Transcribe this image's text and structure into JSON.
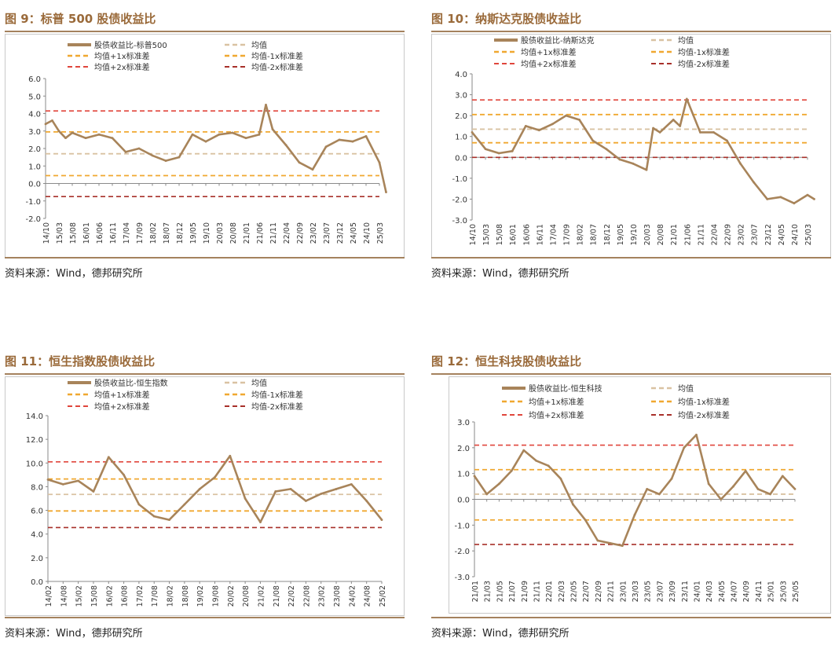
{
  "source_label": "资料来源：Wind，德邦研究所",
  "legend_labels": {
    "series": "股债收益比",
    "mean": "均值",
    "plus1": "均值+1x标准差",
    "minus1": "均值-1x标准差",
    "plus2": "均值+2x标准差",
    "minus2": "均值-2x标准差"
  },
  "colors": {
    "series": "#a8845a",
    "mean": "#d9c2a2",
    "sd1": "#f0a830",
    "plus2": "#e0463c",
    "minus2": "#a8302a"
  },
  "chart_data": [
    {
      "figure_title": "图 9：标普 500 股债收益比",
      "type": "line",
      "series_name": "股债收益比-标普500",
      "x_ticks": [
        "14/10",
        "15/03",
        "15/08",
        "16/01",
        "16/06",
        "16/11",
        "17/04",
        "17/09",
        "18/02",
        "18/07",
        "18/12",
        "19/05",
        "19/10",
        "20/03",
        "20/08",
        "21/01",
        "21/06",
        "21/11",
        "22/04",
        "22/09",
        "23/02",
        "23/07",
        "23/12",
        "24/05",
        "24/10",
        "25/03"
      ],
      "ylim": [
        -2.0,
        6.0
      ],
      "y_ticks": [
        "6.0",
        "5.0",
        "4.0",
        "3.0",
        "2.0",
        "1.0",
        "0.0",
        "-1.0",
        "-2.0"
      ],
      "mean": 1.7,
      "plus1": 2.95,
      "minus1": 0.45,
      "plus2": 4.15,
      "minus2": -0.75,
      "x": [
        0,
        0.5,
        1,
        1.5,
        2,
        3,
        4,
        5,
        6,
        7,
        8,
        9,
        10,
        11,
        12,
        13,
        14,
        15,
        16,
        16.5,
        17,
        18,
        19,
        20,
        21,
        22,
        23,
        24,
        25,
        25.5
      ],
      "values": [
        3.4,
        3.6,
        3.0,
        2.6,
        2.9,
        2.6,
        2.8,
        2.6,
        1.8,
        2.0,
        1.6,
        1.3,
        1.5,
        2.8,
        2.4,
        2.8,
        2.9,
        2.6,
        2.8,
        4.5,
        3.1,
        2.2,
        1.2,
        0.8,
        2.1,
        2.5,
        2.4,
        2.7,
        1.2,
        -0.5
      ]
    },
    {
      "figure_title": "图 10：纳斯达克股债收益比",
      "type": "line",
      "series_name": "股债收益比-纳斯达克",
      "x_ticks": [
        "14/10",
        "15/03",
        "15/08",
        "16/01",
        "16/06",
        "16/11",
        "17/04",
        "17/09",
        "18/02",
        "18/07",
        "18/12",
        "19/05",
        "19/10",
        "20/03",
        "20/08",
        "21/01",
        "21/06",
        "21/11",
        "22/04",
        "22/09",
        "23/02",
        "23/07",
        "23/12",
        "24/05",
        "24/10",
        "25/03"
      ],
      "ylim": [
        -3.0,
        4.0
      ],
      "y_ticks": [
        "4.0",
        "3.0",
        "2.0",
        "1.0",
        "0.0",
        "-1.0",
        "-2.0",
        "-3.0"
      ],
      "mean": 1.35,
      "plus1": 2.05,
      "minus1": 0.7,
      "plus2": 2.75,
      "minus2": 0.0,
      "x": [
        0,
        1,
        2,
        3,
        4,
        5,
        6,
        7,
        8,
        9,
        10,
        11,
        12,
        13,
        13.5,
        14,
        15,
        15.5,
        16,
        17,
        18,
        19,
        20,
        21,
        22,
        23,
        24,
        25,
        25.5
      ],
      "values": [
        1.2,
        0.4,
        0.2,
        0.3,
        1.5,
        1.3,
        1.6,
        2.0,
        1.8,
        0.8,
        0.4,
        -0.1,
        -0.3,
        -0.6,
        1.4,
        1.2,
        1.8,
        1.5,
        2.8,
        1.2,
        1.2,
        0.8,
        -0.3,
        -1.2,
        -2.0,
        -1.9,
        -2.2,
        -1.8,
        -2.0
      ]
    },
    {
      "figure_title": "图 11：恒生指数股债收益比",
      "type": "line",
      "series_name": "股债收益比-恒生指数",
      "x_ticks": [
        "14/02",
        "14/08",
        "15/02",
        "15/08",
        "16/02",
        "16/08",
        "17/02",
        "17/08",
        "18/02",
        "18/08",
        "19/02",
        "19/08",
        "20/02",
        "20/08",
        "21/02",
        "21/08",
        "22/02",
        "22/08",
        "23/02",
        "23/08",
        "24/02",
        "24/08",
        "25/02"
      ],
      "ylim": [
        0.0,
        14.0
      ],
      "y_ticks": [
        "14.0",
        "12.0",
        "10.0",
        "8.0",
        "6.0",
        "4.0",
        "2.0",
        "0.0"
      ],
      "mean": 7.35,
      "plus1": 8.65,
      "minus1": 5.95,
      "plus2": 10.1,
      "minus2": 4.55,
      "x": [
        0,
        1,
        2,
        3,
        4,
        5,
        6,
        7,
        8,
        9,
        10,
        11,
        12,
        13,
        14,
        15,
        16,
        17,
        18,
        19,
        20,
        21,
        22
      ],
      "values": [
        8.6,
        8.2,
        8.5,
        7.6,
        10.5,
        9.0,
        6.5,
        5.5,
        5.2,
        6.5,
        7.8,
        8.8,
        10.6,
        7.0,
        5.0,
        7.6,
        7.8,
        6.8,
        7.4,
        7.8,
        8.2,
        6.8,
        5.2
      ]
    },
    {
      "figure_title": "图 12：恒生科技股债收益比",
      "type": "line",
      "series_name": "股债收益比-恒生科技",
      "x_ticks": [
        "21/01",
        "21/03",
        "21/05",
        "21/07",
        "21/09",
        "21/11",
        "22/01",
        "22/03",
        "22/05",
        "22/07",
        "22/09",
        "22/11",
        "23/01",
        "23/03",
        "23/05",
        "23/07",
        "23/09",
        "23/11",
        "24/01",
        "24/03",
        "24/05",
        "24/07",
        "24/09",
        "24/11",
        "25/01",
        "25/03",
        "25/05"
      ],
      "ylim": [
        -3.0,
        3.0
      ],
      "y_ticks": [
        "3.0",
        "2.0",
        "1.0",
        "0.0",
        "-1.0",
        "-2.0",
        "-3.0"
      ],
      "mean": 0.2,
      "plus1": 1.15,
      "minus1": -0.8,
      "plus2": 2.1,
      "minus2": -1.75,
      "x": [
        0,
        1,
        2,
        3,
        4,
        5,
        6,
        7,
        8,
        9,
        10,
        11,
        12,
        13,
        14,
        15,
        16,
        17,
        18,
        19,
        20,
        21,
        22,
        23,
        24,
        25,
        26
      ],
      "values": [
        0.9,
        0.2,
        0.6,
        1.1,
        1.9,
        1.5,
        1.3,
        0.8,
        -0.2,
        -0.8,
        -1.6,
        -1.7,
        -1.8,
        -0.6,
        0.4,
        0.2,
        0.8,
        2.0,
        2.5,
        0.6,
        0.0,
        0.5,
        1.1,
        0.4,
        0.2,
        0.9,
        0.4
      ]
    }
  ]
}
